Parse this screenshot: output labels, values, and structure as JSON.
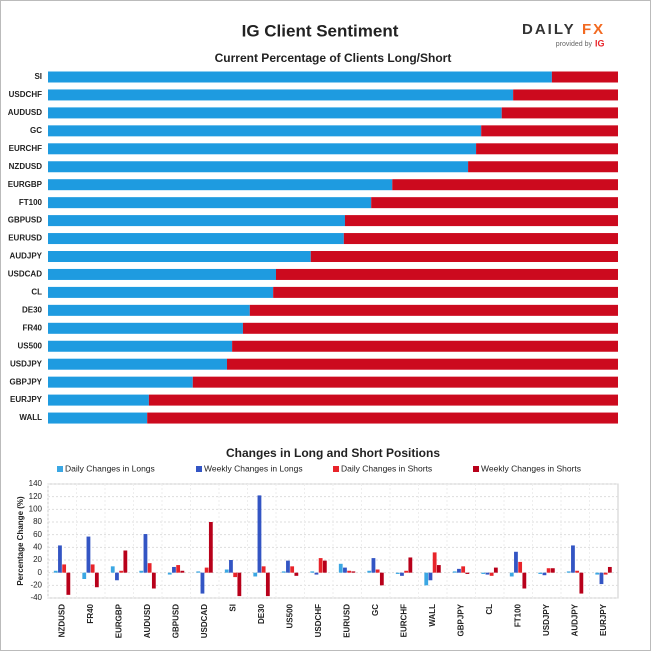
{
  "header": {
    "title": "IG Client Sentiment",
    "logo_main": "DAILY",
    "logo_accent": "FX",
    "logo_sub": "provided by",
    "logo_ig": "IG"
  },
  "chart_data": [
    {
      "type": "bar",
      "orientation": "horizontal",
      "stacked": true,
      "title": "Current Percentage of Clients Long/Short",
      "categories": [
        "SI",
        "USDCHF",
        "AUDUSD",
        "GC",
        "EURCHF",
        "NZDUSD",
        "EURGBP",
        "FT100",
        "GBPUSD",
        "EURUSD",
        "AUDJPY",
        "USDCAD",
        "CL",
        "DE30",
        "FR40",
        "US500",
        "USDJPY",
        "GBPJPY",
        "EURJPY",
        "WALL"
      ],
      "series": [
        {
          "color": "#1e9be0",
          "values": [
            88.4,
            81.6,
            79.6,
            76.0,
            75.1,
            73.7,
            60.4,
            56.7,
            52.1,
            51.9,
            46.1,
            40.0,
            39.5,
            35.4,
            34.2,
            32.3,
            31.4,
            25.4,
            17.7,
            17.4
          ]
        },
        {
          "color": "#cc0a1e",
          "values": [
            11.6,
            18.4,
            20.4,
            24.0,
            24.9,
            26.3,
            39.6,
            43.3,
            47.9,
            48.1,
            53.9,
            60.0,
            60.5,
            64.6,
            65.8,
            67.7,
            68.6,
            74.6,
            82.3,
            82.6
          ]
        }
      ]
    },
    {
      "type": "bar",
      "orientation": "vertical",
      "stacked": false,
      "title": "Changes in Long and Short Positions",
      "y_label": "Percentage Change (%)",
      "categories": [
        "NZDUSD",
        "FR40",
        "EURGBP",
        "AUDUSD",
        "GBPUSD",
        "USDCAD",
        "SI",
        "DE30",
        "US500",
        "USDCHF",
        "EURUSD",
        "GC",
        "EURCHF",
        "WALL",
        "GBPJPY",
        "CL",
        "FT100",
        "USDJPY",
        "AUDJPY",
        "EURJPY"
      ],
      "series": [
        {
          "name": "Daily Changes in Longs",
          "color": "#3ba7e3",
          "values": [
            3,
            -10,
            10,
            3,
            -3,
            2,
            5,
            -6,
            2,
            2,
            14,
            3,
            -2,
            -20,
            2,
            -2,
            -6,
            -2,
            2,
            -3
          ]
        },
        {
          "name": "Weekly Changes in Longs",
          "color": "#3355c4",
          "values": [
            43,
            57,
            -12,
            61,
            9,
            -33,
            20,
            122,
            19,
            -3,
            8,
            23,
            -5,
            -12,
            6,
            -3,
            33,
            -4,
            43,
            -18
          ]
        },
        {
          "name": "Daily Changes in Shorts",
          "color": "#e8242a",
          "values": [
            13,
            13,
            3,
            15,
            12,
            8,
            -7,
            10,
            10,
            23,
            3,
            5,
            3,
            32,
            10,
            -5,
            17,
            7,
            3,
            -3
          ]
        },
        {
          "name": "Weekly Changes in Shorts",
          "color": "#b8001a",
          "values": [
            -35,
            -23,
            35,
            -25,
            3,
            80,
            -37,
            -37,
            -5,
            19,
            2,
            -20,
            24,
            12,
            -2,
            8,
            -25,
            7,
            -33,
            9
          ]
        }
      ],
      "ylim": [
        -40,
        140
      ],
      "yticks": [
        -40,
        -20,
        0,
        20,
        40,
        60,
        80,
        100,
        120,
        140
      ],
      "grid": true
    }
  ]
}
